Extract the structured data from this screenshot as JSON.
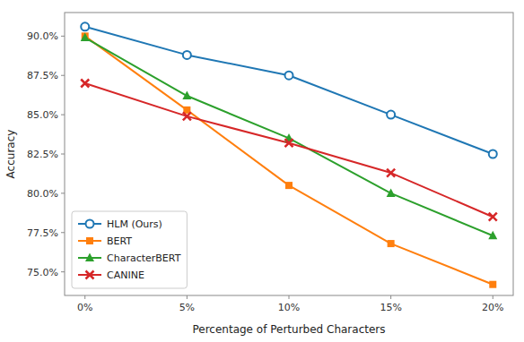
{
  "chart_data": {
    "type": "line",
    "x": [
      0,
      5,
      10,
      15,
      20
    ],
    "xlim": [
      -1,
      21
    ],
    "xticks": [
      {
        "value": 0,
        "label": "0%"
      },
      {
        "value": 5,
        "label": "5%"
      },
      {
        "value": 10,
        "label": "10%"
      },
      {
        "value": 15,
        "label": "15%"
      },
      {
        "value": 20,
        "label": "20%"
      }
    ],
    "ylim": [
      73.5,
      91.5
    ],
    "yticks": [
      {
        "value": 75.0,
        "label": "75.0%"
      },
      {
        "value": 77.5,
        "label": "77.5%"
      },
      {
        "value": 80.0,
        "label": "80.0%"
      },
      {
        "value": 82.5,
        "label": "82.5%"
      },
      {
        "value": 85.0,
        "label": "85.0%"
      },
      {
        "value": 87.5,
        "label": "87.5%"
      },
      {
        "value": 90.0,
        "label": "90.0%"
      }
    ],
    "x_label": "Percentage of Perturbed Characters",
    "y_label": "Accuracy",
    "legend": "lower left",
    "grid": false,
    "series": [
      {
        "name": "HLM (Ours)",
        "color": "#1f77b4",
        "marker": "circle",
        "line_style": "solid",
        "values": [
          90.6,
          88.8,
          87.5,
          85.0,
          82.5
        ]
      },
      {
        "name": "BERT",
        "color": "#ff7f0e",
        "marker": "square",
        "line_style": "solid",
        "values": [
          90.0,
          85.3,
          80.5,
          76.8,
          74.2
        ]
      },
      {
        "name": "CharacterBERT",
        "color": "#2ca02c",
        "marker": "triangle",
        "line_style": "solid",
        "values": [
          89.9,
          86.2,
          83.5,
          80.0,
          77.3
        ]
      },
      {
        "name": "CANINE",
        "color": "#d62728",
        "marker": "x",
        "line_style": "solid",
        "values": [
          87.0,
          84.9,
          83.2,
          81.3,
          78.5
        ]
      }
    ]
  }
}
